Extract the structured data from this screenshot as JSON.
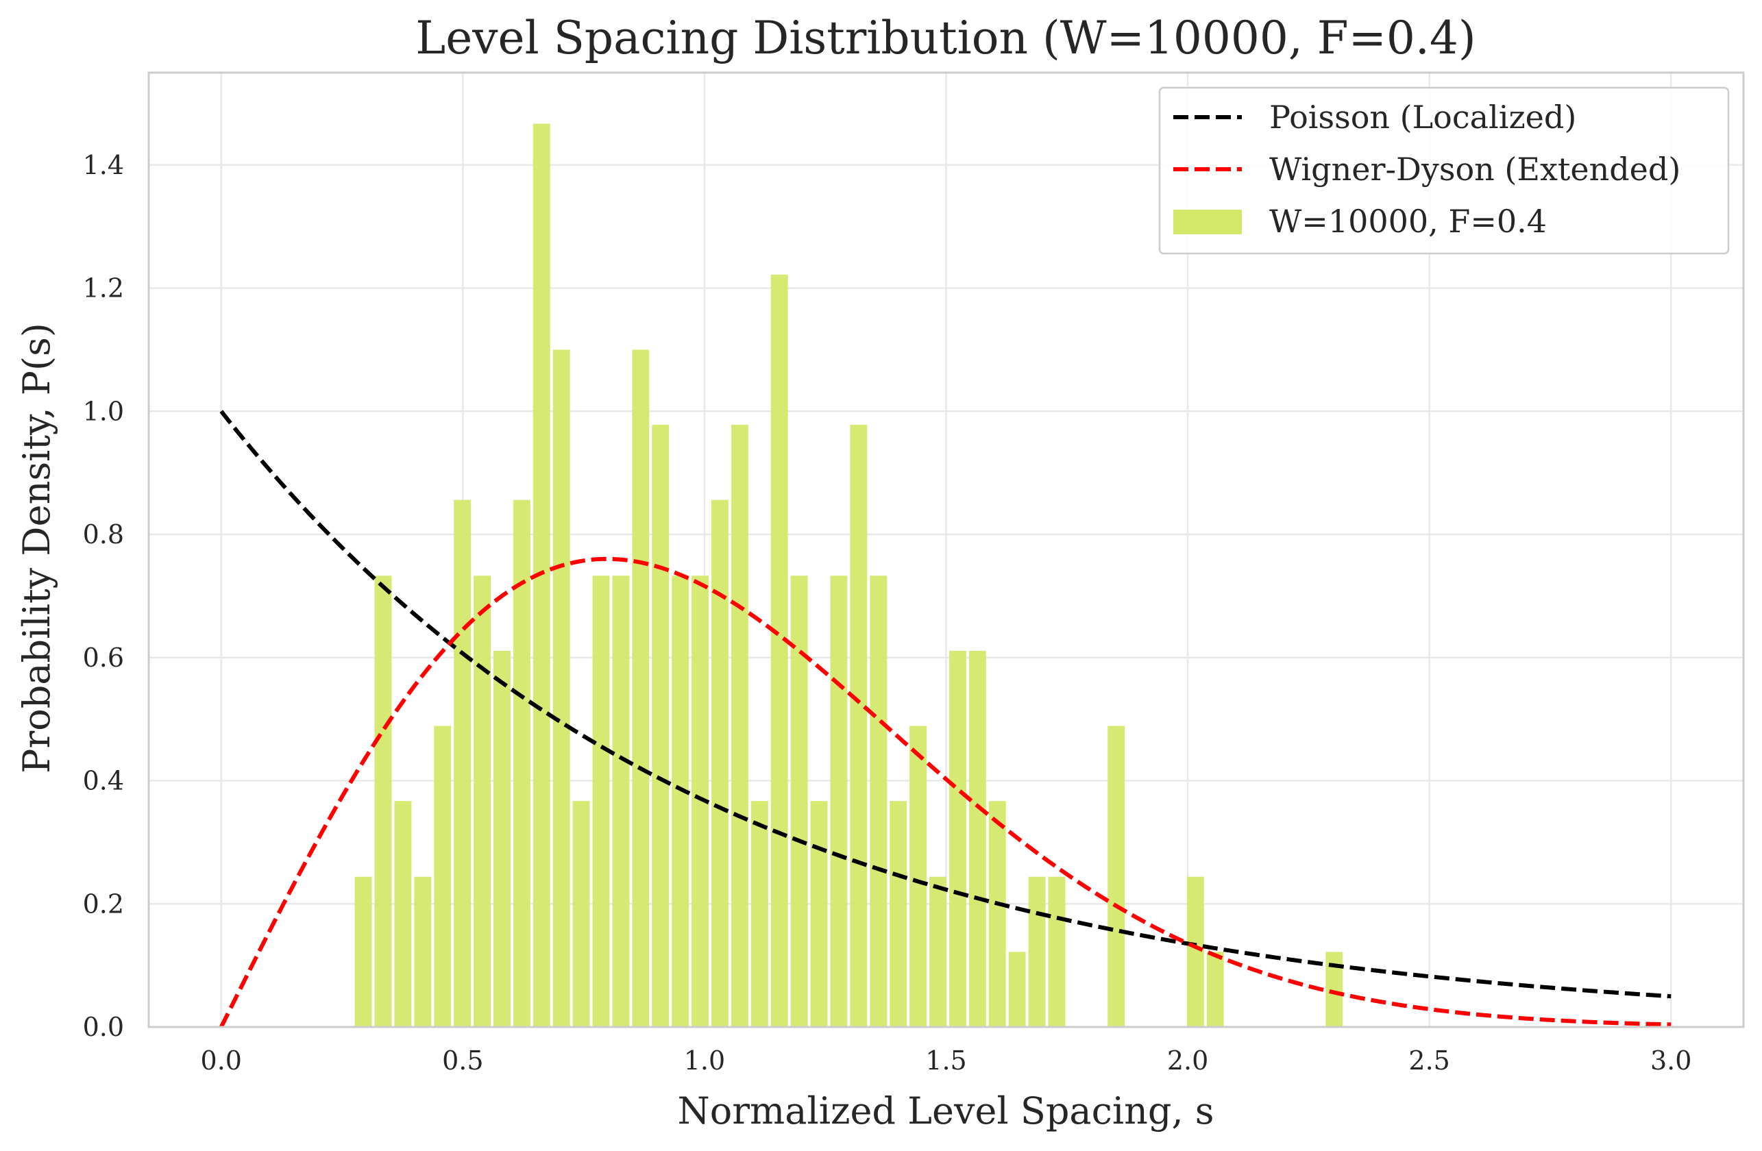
{
  "chart_data": {
    "type": "bar",
    "title": "Level Spacing Distribution (W=10000, F=0.4)",
    "xlabel": "Normalized Level Spacing, s",
    "ylabel": "Probability Density, P(s)",
    "xlim": [
      -0.15,
      3.15
    ],
    "ylim": [
      0,
      1.55
    ],
    "xticks": [
      "0.0",
      "0.5",
      "1.0",
      "1.5",
      "2.0",
      "2.5",
      "3.0"
    ],
    "yticks": [
      "0.0",
      "0.2",
      "0.4",
      "0.6",
      "0.8",
      "1.0",
      "1.2",
      "1.4"
    ],
    "grid": true,
    "legend_position": "top-right",
    "histogram": {
      "name": "W=10000, F=0.4",
      "color": "#d4e86a",
      "bin_width": 0.041,
      "bins": [
        {
          "x": 0.294,
          "y": 0.244
        },
        {
          "x": 0.335,
          "y": 0.733
        },
        {
          "x": 0.376,
          "y": 0.367
        },
        {
          "x": 0.417,
          "y": 0.244
        },
        {
          "x": 0.458,
          "y": 0.489
        },
        {
          "x": 0.499,
          "y": 0.856
        },
        {
          "x": 0.54,
          "y": 0.733
        },
        {
          "x": 0.581,
          "y": 0.611
        },
        {
          "x": 0.622,
          "y": 0.856
        },
        {
          "x": 0.663,
          "y": 1.467
        },
        {
          "x": 0.704,
          "y": 1.1
        },
        {
          "x": 0.745,
          "y": 0.367
        },
        {
          "x": 0.786,
          "y": 0.733
        },
        {
          "x": 0.827,
          "y": 0.733
        },
        {
          "x": 0.868,
          "y": 1.1
        },
        {
          "x": 0.909,
          "y": 0.978
        },
        {
          "x": 0.95,
          "y": 0.733
        },
        {
          "x": 0.991,
          "y": 0.733
        },
        {
          "x": 1.032,
          "y": 0.856
        },
        {
          "x": 1.073,
          "y": 0.978
        },
        {
          "x": 1.114,
          "y": 0.367
        },
        {
          "x": 1.155,
          "y": 1.222
        },
        {
          "x": 1.196,
          "y": 0.733
        },
        {
          "x": 1.237,
          "y": 0.367
        },
        {
          "x": 1.278,
          "y": 0.733
        },
        {
          "x": 1.319,
          "y": 0.978
        },
        {
          "x": 1.36,
          "y": 0.733
        },
        {
          "x": 1.401,
          "y": 0.367
        },
        {
          "x": 1.442,
          "y": 0.489
        },
        {
          "x": 1.483,
          "y": 0.244
        },
        {
          "x": 1.524,
          "y": 0.611
        },
        {
          "x": 1.565,
          "y": 0.611
        },
        {
          "x": 1.606,
          "y": 0.367
        },
        {
          "x": 1.647,
          "y": 0.122
        },
        {
          "x": 1.688,
          "y": 0.244
        },
        {
          "x": 1.729,
          "y": 0.244
        },
        {
          "x": 1.852,
          "y": 0.489
        },
        {
          "x": 2.016,
          "y": 0.244
        },
        {
          "x": 2.057,
          "y": 0.122
        },
        {
          "x": 2.303,
          "y": 0.122
        }
      ]
    },
    "series": [
      {
        "name": "Poisson (Localized)",
        "color": "#000000",
        "function": "exp(-s)",
        "x_range": [
          0,
          3
        ]
      },
      {
        "name": "Wigner-Dyson (Extended)",
        "color": "#ff0000",
        "function": "(pi/2)*s*exp(-pi*s^2/4)",
        "x_range": [
          0,
          3
        ]
      }
    ]
  }
}
